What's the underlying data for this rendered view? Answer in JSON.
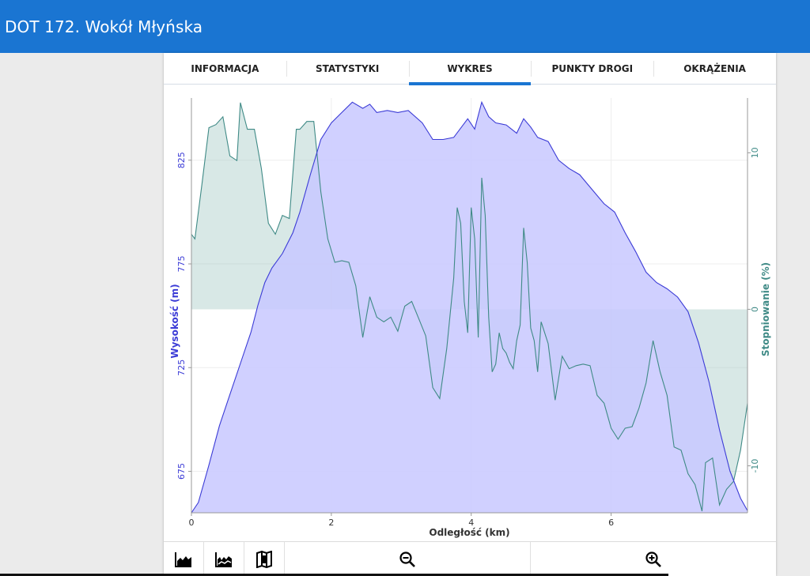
{
  "app": {
    "title": "DOT 172. Wokół Młyńska"
  },
  "tabs": [
    {
      "label": "INFORMACJA"
    },
    {
      "label": "STATYSTYKI"
    },
    {
      "label": "WYKRES"
    },
    {
      "label": "PUNKTY DROGI"
    },
    {
      "label": "OKRĄŻENIA"
    }
  ],
  "active_tab": "WYKRES",
  "toolbar": {
    "icons": [
      "elevation-chart-icon",
      "grade-chart-icon",
      "map-icon",
      "zoom-out-icon",
      "zoom-in-icon"
    ]
  },
  "colors": {
    "accent": "#1a75d2",
    "elevation": "#3b3bd6",
    "elevation_fill": "#c8c8ff",
    "grade": "#3f8a86",
    "grade_fill": "#8fbcb8"
  },
  "chart_data": {
    "type": "area",
    "xlabel": "Odległość (km)",
    "ylabel_left": "Wysokość (m)",
    "ylabel_right": "Stopniowanie (%)",
    "xlim": [
      0,
      7.95
    ],
    "ylim_left": [
      655,
      855
    ],
    "ylim_right": [
      -13,
      13.5
    ],
    "x_ticks": [
      0,
      2,
      4,
      6
    ],
    "y_left_ticks": [
      675,
      725,
      775,
      825
    ],
    "y_right_ticks": [
      -10,
      0,
      10
    ],
    "grid": true,
    "series": [
      {
        "name": "Wysokość (m)",
        "axis": "left",
        "x": [
          0,
          0.1,
          0.25,
          0.4,
          0.55,
          0.7,
          0.85,
          0.95,
          1.05,
          1.15,
          1.3,
          1.45,
          1.55,
          1.7,
          1.85,
          2.0,
          2.15,
          2.3,
          2.45,
          2.55,
          2.65,
          2.8,
          2.95,
          3.1,
          3.3,
          3.45,
          3.6,
          3.75,
          3.95,
          4.05,
          4.15,
          4.25,
          4.35,
          4.5,
          4.65,
          4.75,
          4.85,
          4.95,
          5.1,
          5.25,
          5.4,
          5.55,
          5.7,
          5.9,
          6.05,
          6.2,
          6.35,
          6.5,
          6.65,
          6.8,
          6.95,
          7.1,
          7.25,
          7.4,
          7.55,
          7.7,
          7.85,
          7.95
        ],
        "values": [
          655,
          660,
          678,
          697,
          712,
          727,
          742,
          755,
          766,
          773,
          780,
          790,
          800,
          818,
          835,
          843,
          848,
          853,
          850,
          852,
          848,
          849,
          848,
          849,
          843,
          835,
          835,
          836,
          845,
          840,
          853,
          846,
          843,
          842,
          838,
          845,
          841,
          836,
          834,
          825,
          821,
          818,
          812,
          804,
          800,
          790,
          781,
          771,
          766,
          763,
          759,
          752,
          737,
          718,
          695,
          675,
          662,
          656
        ]
      },
      {
        "name": "Stopniowanie (%)",
        "axis": "right",
        "x": [
          0,
          0.05,
          0.15,
          0.25,
          0.35,
          0.45,
          0.55,
          0.65,
          0.7,
          0.8,
          0.9,
          1.0,
          1.1,
          1.2,
          1.3,
          1.4,
          1.5,
          1.55,
          1.65,
          1.75,
          1.85,
          1.95,
          2.05,
          2.15,
          2.25,
          2.35,
          2.45,
          2.55,
          2.65,
          2.75,
          2.85,
          2.95,
          3.05,
          3.15,
          3.25,
          3.35,
          3.45,
          3.55,
          3.65,
          3.75,
          3.8,
          3.85,
          3.9,
          3.95,
          4.0,
          4.05,
          4.1,
          4.15,
          4.2,
          4.25,
          4.3,
          4.35,
          4.4,
          4.45,
          4.5,
          4.55,
          4.6,
          4.65,
          4.7,
          4.75,
          4.8,
          4.85,
          4.9,
          4.95,
          5.0,
          5.1,
          5.2,
          5.3,
          5.4,
          5.5,
          5.6,
          5.7,
          5.8,
          5.9,
          6.0,
          6.1,
          6.2,
          6.3,
          6.4,
          6.5,
          6.6,
          6.7,
          6.8,
          6.9,
          7.0,
          7.1,
          7.2,
          7.3,
          7.35,
          7.45,
          7.55,
          7.65,
          7.75,
          7.85,
          7.95
        ],
        "values": [
          4.8,
          4.5,
          8.0,
          11.6,
          11.8,
          12.3,
          9.8,
          9.5,
          13.2,
          11.5,
          11.5,
          9.0,
          5.5,
          4.8,
          6.0,
          5.8,
          11.5,
          11.5,
          12.0,
          12.0,
          7.5,
          4.5,
          3.0,
          3.1,
          3.0,
          1.5,
          -1.8,
          0.8,
          -0.5,
          -0.8,
          -0.5,
          -1.4,
          0.2,
          0.5,
          -0.6,
          -1.7,
          -5.0,
          -5.7,
          -2.5,
          2.0,
          6.5,
          5.5,
          0.5,
          -1.5,
          6.5,
          4.5,
          -1.8,
          8.4,
          6.0,
          -0.5,
          -4.0,
          -3.5,
          -1.5,
          -2.5,
          -2.8,
          -3.4,
          -3.8,
          -2.0,
          -1.0,
          5.2,
          3.0,
          -1.2,
          -2.0,
          -4.0,
          -0.8,
          -2.2,
          -5.8,
          -3.0,
          -3.8,
          -3.6,
          -3.5,
          -3.6,
          -5.5,
          -6.0,
          -7.6,
          -8.3,
          -7.6,
          -7.5,
          -6.3,
          -4.7,
          -2.0,
          -4.0,
          -5.5,
          -8.8,
          -9.0,
          -10.5,
          -11.2,
          -12.9,
          -9.8,
          -9.5,
          -12.5,
          -11.5,
          -11.0,
          -9.0,
          -6.0
        ]
      }
    ]
  }
}
